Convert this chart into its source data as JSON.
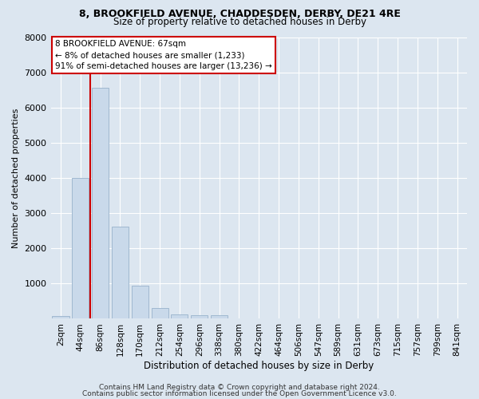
{
  "title": "8, BROOKFIELD AVENUE, CHADDESDEN, DERBY, DE21 4RE",
  "subtitle": "Size of property relative to detached houses in Derby",
  "xlabel": "Distribution of detached houses by size in Derby",
  "ylabel": "Number of detached properties",
  "bar_labels": [
    "2sqm",
    "44sqm",
    "86sqm",
    "128sqm",
    "170sqm",
    "212sqm",
    "254sqm",
    "296sqm",
    "338sqm",
    "380sqm",
    "422sqm",
    "464sqm",
    "506sqm",
    "547sqm",
    "589sqm",
    "631sqm",
    "673sqm",
    "715sqm",
    "757sqm",
    "799sqm",
    "841sqm"
  ],
  "bar_values": [
    80,
    4000,
    6550,
    2620,
    950,
    310,
    120,
    90,
    90,
    0,
    0,
    0,
    0,
    0,
    0,
    0,
    0,
    0,
    0,
    0,
    0
  ],
  "bar_color": "#c9d9ea",
  "bar_edgecolor": "#a0b8d0",
  "vline_color": "#cc0000",
  "annotation_line1": "8 BROOKFIELD AVENUE: 67sqm",
  "annotation_line2": "← 8% of detached houses are smaller (1,233)",
  "annotation_line3": "91% of semi-detached houses are larger (13,236) →",
  "annotation_box_color": "#ffffff",
  "annotation_box_edgecolor": "#cc0000",
  "ylim": [
    0,
    8000
  ],
  "yticks": [
    0,
    1000,
    2000,
    3000,
    4000,
    5000,
    6000,
    7000,
    8000
  ],
  "footer1": "Contains HM Land Registry data © Crown copyright and database right 2024.",
  "footer2": "Contains public sector information licensed under the Open Government Licence v3.0.",
  "bg_color": "#dce6f0",
  "plot_bg_color": "#dce6f0",
  "grid_color": "#ffffff",
  "title_fontsize": 9,
  "subtitle_fontsize": 8.5
}
